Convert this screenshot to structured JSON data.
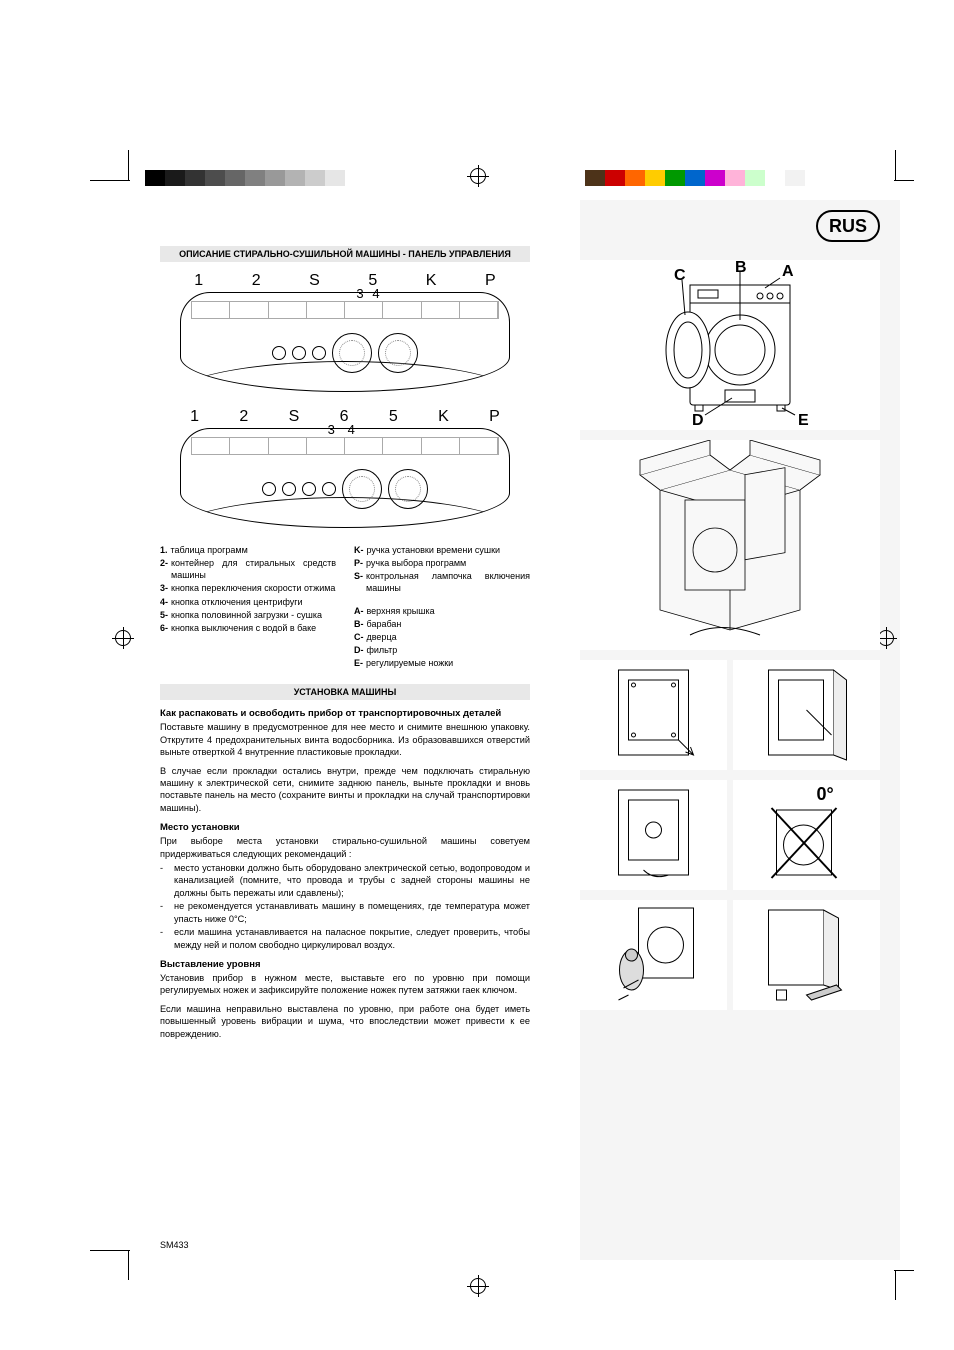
{
  "lang_badge": "RUS",
  "colorbar_left": [
    "#000000",
    "#1a1a1a",
    "#333333",
    "#4d4d4d",
    "#666666",
    "#808080",
    "#999999",
    "#b3b3b3",
    "#cccccc",
    "#e6e6e6",
    "#ffffff"
  ],
  "colorbar_right": [
    "#4d3319",
    "#cc0000",
    "#ff6600",
    "#ffcc00",
    "#009900",
    "#0066cc",
    "#cc00cc",
    "#ffb3d9",
    "#ccffcc",
    "#ffffff",
    "#f2f2f2"
  ],
  "header1": "ОПИСАНИЕ СТИРАЛЬНО-СУШИЛЬНОЙ МАШИНЫ  - ПАНЕЛЬ УПРАВЛЕНИЯ",
  "header2": "УСТАНОВКА МАШИНЫ",
  "panel1_labels": [
    "1",
    "2",
    "S",
    "5",
    "K",
    "P"
  ],
  "panel1_sublabels": [
    "3",
    "4"
  ],
  "panel2_labels": [
    "1",
    "2",
    "S",
    "6",
    "5",
    "K",
    "P"
  ],
  "panel2_sublabels": [
    "3",
    "4"
  ],
  "legend_left": [
    {
      "k": "1.",
      "t": "таблица программ"
    },
    {
      "k": "2-",
      "t": "контейнер для стиральных средств машины"
    },
    {
      "k": "3-",
      "t": "кнопка переключения скорости отжима"
    },
    {
      "k": "4-",
      "t": "кнопка отключения центрифуги"
    },
    {
      "k": "5-",
      "t": "кнопка половинной загрузки - сушка"
    },
    {
      "k": "6-",
      "t": "кнопка выключения с водой в баке"
    }
  ],
  "legend_right": [
    {
      "k": "K-",
      "t": "ручка установки времени  сушки"
    },
    {
      "k": "P-",
      "t": "ручка выбора программ"
    },
    {
      "k": "S-",
      "t": "контрольная лампочка включения машины"
    },
    {
      "k": "",
      "t": ""
    },
    {
      "k": "A-",
      "t": "верхняя крышка"
    },
    {
      "k": "B-",
      "t": "барабан"
    },
    {
      "k": "C-",
      "t": "дверца"
    },
    {
      "k": "D-",
      "t": "фильтр"
    },
    {
      "k": "E-",
      "t": "регулируемые ножки"
    }
  ],
  "machine_labels": {
    "A": "A",
    "B": "B",
    "C": "C",
    "D": "D",
    "E": "E"
  },
  "unpack_head": "Как распаковать и освободить прибор от транспортировочных деталей",
  "unpack_p1": "Поставьте машину в предусмотренное для нее место и снимите внешнюю упаковку. Открутите 4 предохранительных винта водосборника. Из образовавшихся отверстий выньте отверткой 4 внутренние пластиковые прокладки.",
  "unpack_p2": "В случае если прокладки остались внутри, прежде чем подключать стиральную машину к электрической сети, снимите заднюю панель, выньте прокладки и вновь поставьте панель на место (сохраните винты и прокладки на случай транспортировки машины).",
  "place_head": "Место установки",
  "place_intro": "При выборе места установки стирально-сушильной машины советуем придерживаться следующих рекомендаций :",
  "place_bullets": [
    "место установки должно быть оборудовано электрической сетью, водопроводом и канализацией (помните, что провода и трубы с задней стороны машины не должны быть пережаты или сдавлены);",
    "не рекомендуется устанавливать машину в помещениях, где температура может упасть ниже 0°C;",
    "если машина устанавливается на паласное покрытие, следует проверить, чтобы между ней и полом свободно циркулировал воздух."
  ],
  "level_head": "Выставление уровня",
  "level_p1": "Установив прибор в нужном месте, выставьте его по уровню при помощи регулируемых ножек и зафиксируйте положение ножек путем затяжки гаек ключом.",
  "level_p2": "Если машина неправильно выставлена по уровню, при работе она будет иметь повышенный уровень вибрации и шума, что впоследствии может привести к ее повреждению.",
  "footer": "SM433",
  "zero_deg": "0°"
}
